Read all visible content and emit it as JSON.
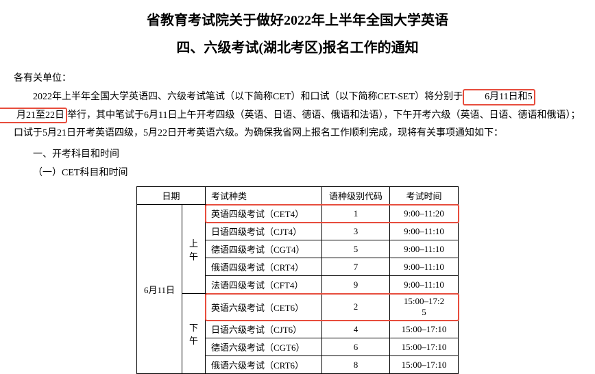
{
  "title": {
    "line1": "省教育考试院关于做好2022年上半年全国大学英语",
    "line2": "四、六级考试(湖北考区)报名工作的通知"
  },
  "salutation": "各有关单位：",
  "paragraph": {
    "p1_pre": "2022年上半年全国大学英语四、六级考试笔试（以下简称CET）和口试（以下简称CET-SET）将分别于",
    "hl1": "6月11日和5",
    "p1_line2_hl": "月21至22日",
    "p1_post": "举行，其中笔试于6月11日上午开考四级（英语、日语、德语、俄语和法语），下午开考六级（英语、日语、德语和俄语）；口试于5月21日开考英语四级，5月22日开考英语六级。为确保我省网上报名工作顺利完成，现将有关事项通知如下："
  },
  "section1": "一、开考科目和时间",
  "section1_1": "（一）CET科目和时间",
  "table": {
    "headers": {
      "date": "日期",
      "exam_type": "考试种类",
      "lang_code": "语种级别代码",
      "exam_time": "考试时间"
    },
    "date_label": "6月11日",
    "periods": {
      "am": "上午",
      "pm": "下午"
    },
    "rows": [
      {
        "period": "am",
        "exam": "英语四级考试（CET4）",
        "code": "1",
        "time": "9:00–11:20",
        "hl": true
      },
      {
        "period": "am",
        "exam": "日语四级考试（CJT4）",
        "code": "3",
        "time": "9:00–11:10",
        "hl": false
      },
      {
        "period": "am",
        "exam": "德语四级考试（CGT4）",
        "code": "5",
        "time": "9:00–11:10",
        "hl": false
      },
      {
        "period": "am",
        "exam": "俄语四级考试（CRT4）",
        "code": "7",
        "time": "9:00–11:10",
        "hl": false
      },
      {
        "period": "am",
        "exam": "法语四级考试（CFT4）",
        "code": "9",
        "time": "9:00–11:10",
        "hl": false
      },
      {
        "period": "pm",
        "exam": "英语六级考试（CET6）",
        "code": "2",
        "time": "15:00–17:25",
        "hl": true
      },
      {
        "period": "pm",
        "exam": "日语六级考试（CJT6）",
        "code": "4",
        "time": "15:00–17:10",
        "hl": false
      },
      {
        "period": "pm",
        "exam": "德语六级考试（CGT6）",
        "code": "6",
        "time": "15:00–17:10",
        "hl": false
      },
      {
        "period": "pm",
        "exam": "俄语六级考试（CRT6）",
        "code": "8",
        "time": "15:00–17:10",
        "hl": false
      }
    ]
  },
  "colors": {
    "highlight_border": "#e74c3c",
    "text": "#000000",
    "background": "#ffffff"
  }
}
